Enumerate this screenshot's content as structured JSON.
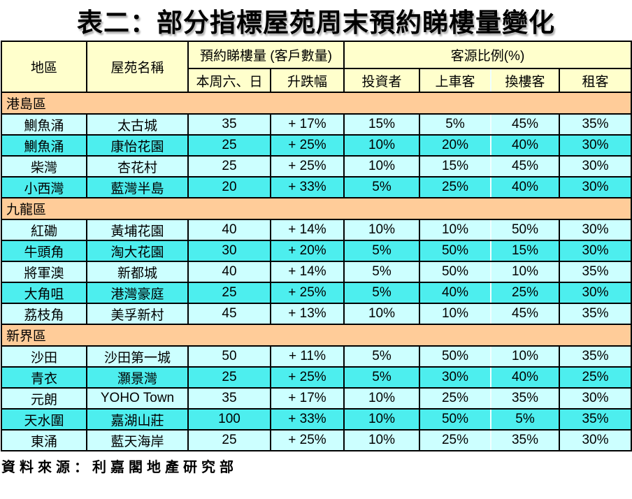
{
  "page": {
    "title": "表二：部分指標屋苑周末預約睇樓量變化",
    "source_note": "資料來源：利嘉閣地產研究部"
  },
  "colors": {
    "header_bg": "#FFFFCC",
    "section_bg": "#FFCC99",
    "row_light": "#CCFFFF",
    "row_bright": "#4DEEEE",
    "border": "#000000",
    "divider": "#EFFFFF"
  },
  "chart_data": {
    "type": "table",
    "title": "表二：部分指標屋苑周末預約睇樓量變化",
    "header": {
      "region": "地區",
      "estate": "屋苑名稱",
      "bookings_group": "預約睇樓量 (客戶數量)",
      "bookings_cols": [
        "本周六、日",
        "升跌幅"
      ],
      "source_group": "客源比例(%)",
      "source_cols": [
        "投資者",
        "上車客",
        "換樓客",
        "租客"
      ]
    },
    "columns": [
      "地區",
      "屋苑名稱",
      "本周六、日",
      "升跌幅",
      "投資者",
      "上車客",
      "換樓客",
      "租客"
    ],
    "sections": [
      {
        "name": "港島區",
        "rows": [
          [
            "鰂魚涌",
            "太古城",
            "35",
            "+ 17%",
            "15%",
            "5%",
            "45%",
            "35%"
          ],
          [
            "鰂魚涌",
            "康怡花園",
            "25",
            "+ 25%",
            "10%",
            "20%",
            "40%",
            "30%"
          ],
          [
            "柴灣",
            "杏花村",
            "25",
            "+ 25%",
            "10%",
            "15%",
            "45%",
            "30%"
          ],
          [
            "小西灣",
            "藍灣半島",
            "20",
            "+ 33%",
            "5%",
            "25%",
            "40%",
            "30%"
          ]
        ]
      },
      {
        "name": "九龍區",
        "rows": [
          [
            "紅磡",
            "黃埔花園",
            "40",
            "+ 14%",
            "10%",
            "10%",
            "50%",
            "30%"
          ],
          [
            "牛頭角",
            "淘大花園",
            "30",
            "+ 20%",
            "5%",
            "50%",
            "15%",
            "30%"
          ],
          [
            "將軍澳",
            "新都城",
            "40",
            "+ 14%",
            "5%",
            "50%",
            "10%",
            "35%"
          ],
          [
            "大角咀",
            "港灣豪庭",
            "25",
            "+ 25%",
            "5%",
            "40%",
            "25%",
            "30%"
          ],
          [
            "荔枝角",
            "美孚新村",
            "45",
            "+ 13%",
            "10%",
            "10%",
            "45%",
            "35%"
          ]
        ]
      },
      {
        "name": "新界區",
        "rows": [
          [
            "沙田",
            "沙田第一城",
            "50",
            "+ 11%",
            "5%",
            "50%",
            "10%",
            "35%"
          ],
          [
            "青衣",
            "灝景灣",
            "25",
            "+ 25%",
            "5%",
            "30%",
            "40%",
            "25%"
          ],
          [
            "元朗",
            "YOHO Town",
            "35",
            "+ 17%",
            "10%",
            "25%",
            "35%",
            "30%"
          ],
          [
            "天水圍",
            "嘉湖山莊",
            "100",
            "+ 33%",
            "10%",
            "50%",
            "5%",
            "35%"
          ],
          [
            "東涌",
            "藍天海岸",
            "25",
            "+ 25%",
            "10%",
            "25%",
            "35%",
            "30%"
          ]
        ]
      }
    ]
  }
}
